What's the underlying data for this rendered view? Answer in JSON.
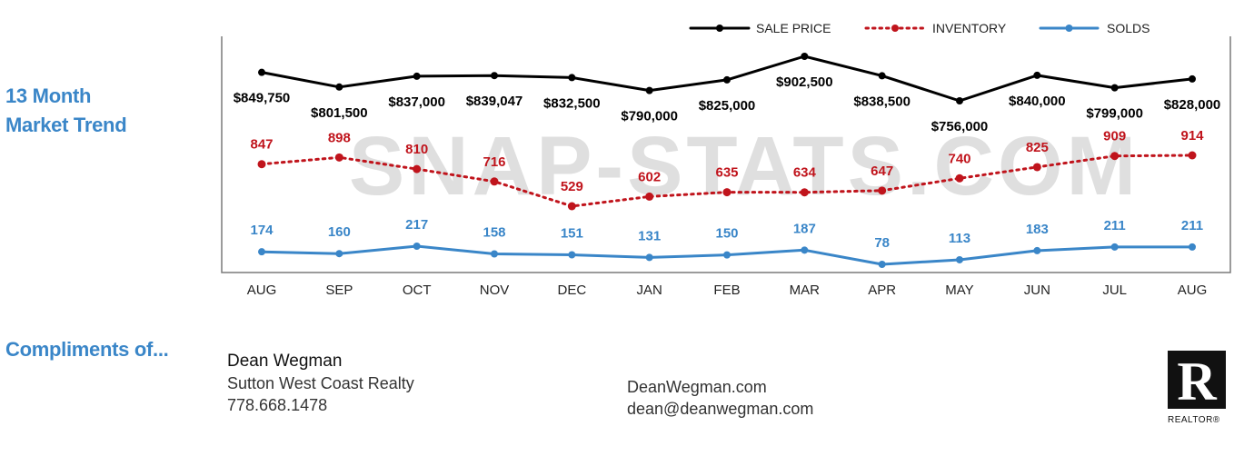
{
  "title": {
    "line1": "13 Month",
    "line2": "Market Trend"
  },
  "watermark": "SNAP-STATS.COM",
  "colors": {
    "sale": "#000000",
    "inventory": "#c0141c",
    "solds": "#3a86c8",
    "accent": "#3a86c8"
  },
  "chart_data": {
    "type": "line",
    "categories": [
      "AUG",
      "SEP",
      "OCT",
      "NOV",
      "DEC",
      "JAN",
      "FEB",
      "MAR",
      "APR",
      "MAY",
      "JUN",
      "JUL",
      "AUG"
    ],
    "series": [
      {
        "name": "SALE PRICE",
        "style": "solid",
        "values": [
          849750,
          801500,
          837000,
          839047,
          832500,
          790000,
          825000,
          902500,
          838500,
          756000,
          840000,
          799000,
          828000
        ],
        "labels": [
          "$849,750",
          "$801,500",
          "$837,000",
          "$839,047",
          "$832,500",
          "$790,000",
          "$825,000",
          "$902,500",
          "$838,500",
          "$756,000",
          "$840,000",
          "$799,000",
          "$828,000"
        ]
      },
      {
        "name": "INVENTORY",
        "style": "dotted",
        "values": [
          847,
          898,
          810,
          716,
          529,
          602,
          635,
          634,
          647,
          740,
          825,
          909,
          914
        ],
        "labels": [
          "847",
          "898",
          "810",
          "716",
          "529",
          "602",
          "635",
          "634",
          "647",
          "740",
          "825",
          "909",
          "914"
        ]
      },
      {
        "name": "SOLDS",
        "style": "solid",
        "values": [
          174,
          160,
          217,
          158,
          151,
          131,
          150,
          187,
          78,
          113,
          183,
          211,
          211
        ],
        "labels": [
          "174",
          "160",
          "217",
          "158",
          "151",
          "131",
          "150",
          "187",
          "78",
          "113",
          "183",
          "211",
          "211"
        ]
      }
    ],
    "legend_position": "top-right",
    "grid": false
  },
  "footer": {
    "compliments": "Compliments of...",
    "agent_name": "Dean Wegman",
    "company": "Sutton West Coast Realty",
    "phone": "778.668.1478",
    "website": "DeanWegman.com",
    "email": "dean@deanwegman.com",
    "realtor_mark": "R",
    "realtor_text": "REALTOR®"
  }
}
